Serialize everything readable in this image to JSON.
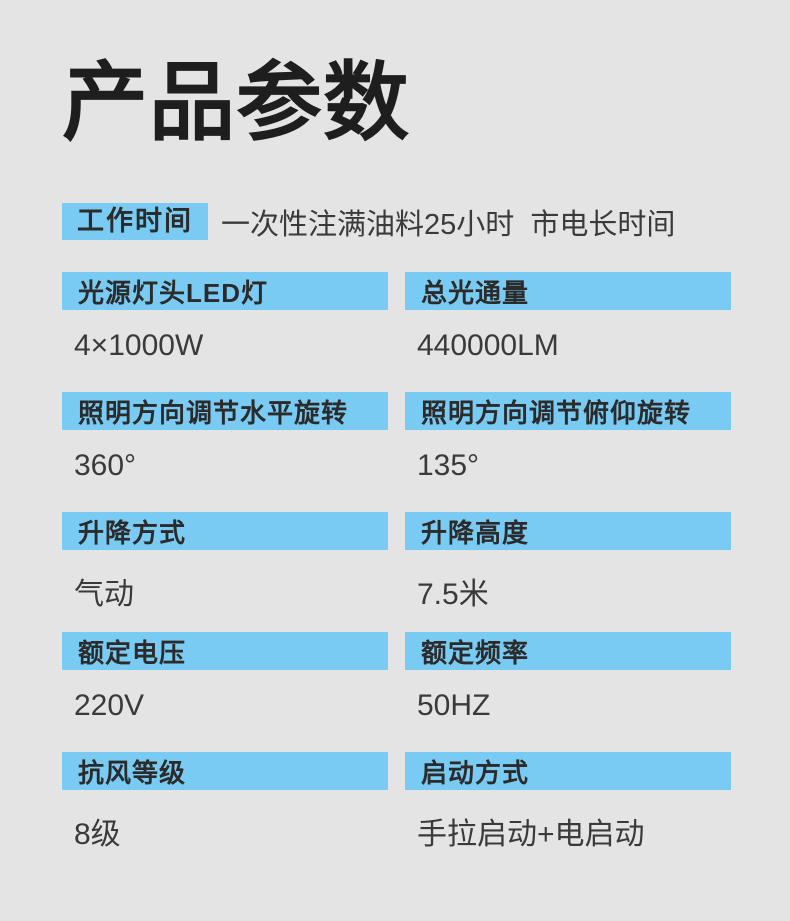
{
  "page": {
    "title": "产品参数"
  },
  "colors": {
    "background": "#e4e4e5",
    "accent": "#79cbf3",
    "title_text": "#1e1e1e",
    "header_text": "#2b2b2b",
    "value_text": "#3a3a3a"
  },
  "worktime": {
    "label": "工作时间",
    "text": "一次性注满油料25小时  市电长时间"
  },
  "parameters": [
    {
      "label": "光源灯头LED灯",
      "value": "4×1000W"
    },
    {
      "label": "总光通量",
      "value": "440000LM"
    },
    {
      "label": "照明方向调节水平旋转",
      "value": "360°"
    },
    {
      "label": "照明方向调节俯仰旋转",
      "value": "135°"
    },
    {
      "label": "升降方式",
      "value": "气动"
    },
    {
      "label": "升降高度",
      "value": "7.5米"
    },
    {
      "label": "额定电压",
      "value": "220V"
    },
    {
      "label": "额定频率",
      "value": "50HZ"
    },
    {
      "label": "抗风等级",
      "value": "8级"
    },
    {
      "label": "启动方式",
      "value": "手拉启动+电启动"
    }
  ]
}
